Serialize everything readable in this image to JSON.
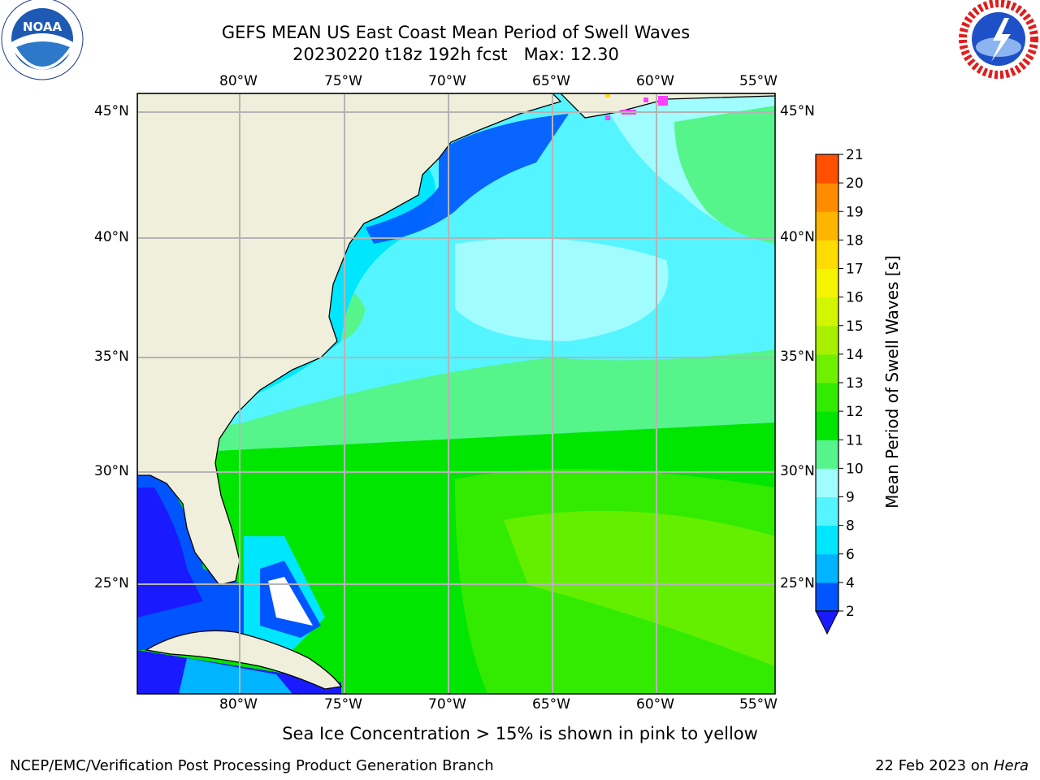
{
  "header": {
    "title_line1": "GEFS MEAN US East Coast Mean Period of Swell Waves",
    "title_line2": "20230220 t18z 192h fcst   Max: 12.30"
  },
  "logos": {
    "noaa": {
      "text": "NOAA",
      "ring_text": "NATIONAL OCEANIC AND ATMOSPHERIC ADMINISTRATION · U.S. DEPARTMENT OF COMMERCE"
    },
    "nws": {
      "ring_text": "NATIONAL WEATHER SERVICE"
    }
  },
  "map": {
    "lon_labels": [
      "80°W",
      "75°W",
      "70°W",
      "65°W",
      "60°W",
      "55°W"
    ],
    "lat_labels": [
      "45°N",
      "40°N",
      "35°N",
      "30°N",
      "25°N"
    ]
  },
  "colorbar": {
    "label": "Mean Period of Swell Waves [s]",
    "ticks": [
      "2",
      "4",
      "6",
      "8",
      "9",
      "10",
      "11",
      "12",
      "13",
      "14",
      "15",
      "16",
      "17",
      "18",
      "19",
      "20",
      "21"
    ],
    "colors": [
      "#0055ff",
      "#00b4ff",
      "#00e6ff",
      "#55f5ff",
      "#a0fcff",
      "#55f58c",
      "#00e600",
      "#32eb00",
      "#6ef000",
      "#a8f000",
      "#d2f500",
      "#f5f500",
      "#ffdc00",
      "#ffb400",
      "#ff8c00",
      "#ff5000",
      "#ff1e00",
      "#ff0000"
    ],
    "under_color": "#1a1aff"
  },
  "colors": {
    "land": "#efefdc",
    "gridline": "#b4b4b4",
    "ice": "#ff40ff"
  },
  "footer": {
    "note": "Sea Ice Concentration > 15% is shown in pink to yellow",
    "left": "NCEP/EMC/Verification Post Processing Product Generation Branch",
    "right_date": "22 Feb 2023 on ",
    "right_host": "Hera"
  }
}
